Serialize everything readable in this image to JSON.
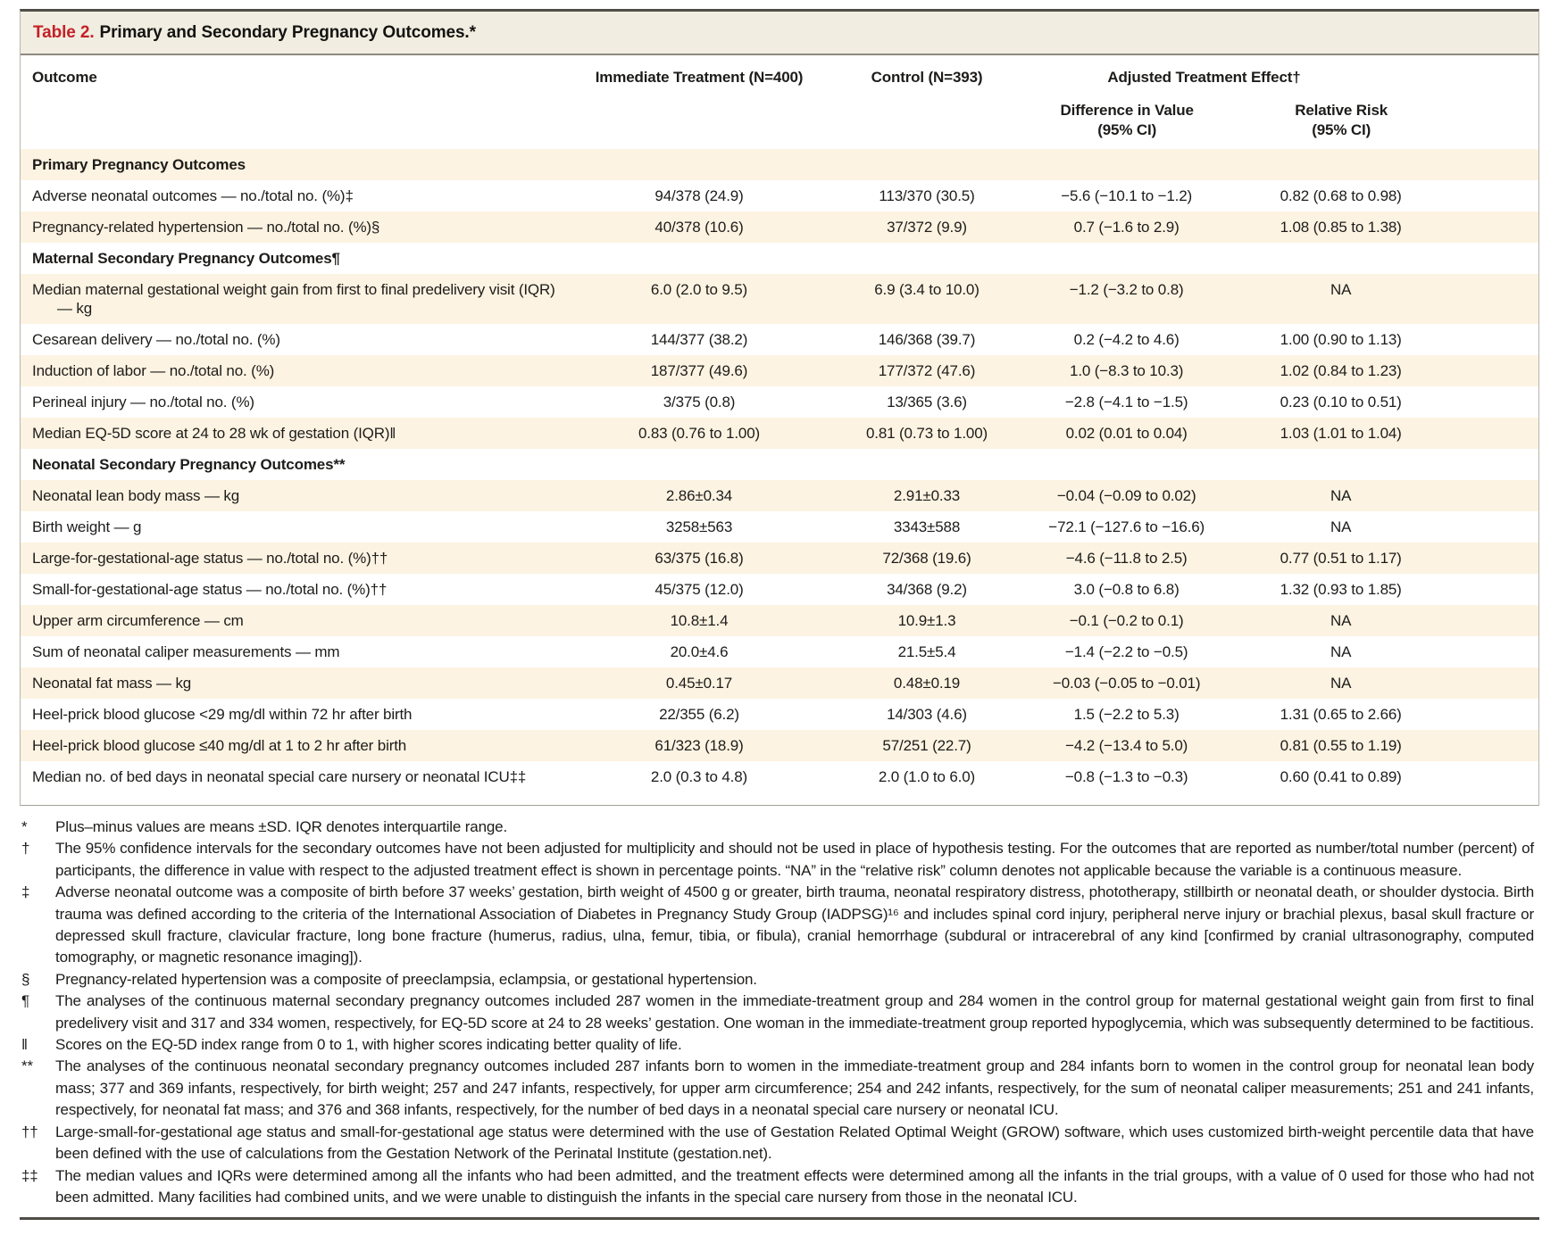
{
  "title": {
    "label": "Table 2.",
    "text": "Primary and Secondary Pregnancy Outcomes.*"
  },
  "columns": {
    "outcome": "Outcome",
    "immediate": "Immediate Treatment (N=400)",
    "control": "Control (N=393)",
    "adjusted_group": "Adjusted Treatment Effect†",
    "difference": "Difference in Value\n(95% CI)",
    "relative_risk": "Relative Risk\n(95% CI)"
  },
  "rows": [
    {
      "type": "section",
      "label": "Primary Pregnancy Outcomes"
    },
    {
      "type": "data",
      "label": "Adverse neonatal outcomes — no./total no. (%)‡",
      "values": [
        "94/378 (24.9)",
        "113/370 (30.5)",
        "−5.6 (−10.1 to −1.2)",
        "0.82 (0.68 to 0.98)"
      ]
    },
    {
      "type": "data",
      "label": "Pregnancy-related hypertension — no./total no. (%)§",
      "values": [
        "40/378 (10.6)",
        "37/372 (9.9)",
        "0.7 (−1.6 to 2.9)",
        "1.08 (0.85 to 1.38)"
      ]
    },
    {
      "type": "section",
      "label": "Maternal Secondary Pregnancy Outcomes¶"
    },
    {
      "type": "data",
      "label": "Median maternal gestational weight gain from first to final predelivery visit (IQR) — kg",
      "values": [
        "6.0 (2.0 to 9.5)",
        "6.9 (3.4 to 10.0)",
        "−1.2 (−3.2 to 0.8)",
        "NA"
      ]
    },
    {
      "type": "data",
      "label": "Cesarean delivery — no./total no. (%)",
      "values": [
        "144/377 (38.2)",
        "146/368 (39.7)",
        "0.2 (−4.2 to 4.6)",
        "1.00 (0.90 to 1.13)"
      ]
    },
    {
      "type": "data",
      "label": "Induction of labor — no./total no. (%)",
      "values": [
        "187/377 (49.6)",
        "177/372 (47.6)",
        "1.0 (−8.3 to 10.3)",
        "1.02 (0.84 to 1.23)"
      ]
    },
    {
      "type": "data",
      "label": "Perineal injury — no./total no. (%)",
      "values": [
        "3/375 (0.8)",
        "13/365 (3.6)",
        "−2.8 (−4.1 to −1.5)",
        "0.23 (0.10 to 0.51)"
      ]
    },
    {
      "type": "data",
      "label": "Median EQ-5D score at 24 to 28 wk of gestation (IQR)‖",
      "values": [
        "0.83 (0.76 to 1.00)",
        "0.81 (0.73 to 1.00)",
        "0.02 (0.01 to 0.04)",
        "1.03 (1.01 to 1.04)"
      ]
    },
    {
      "type": "section",
      "label": "Neonatal Secondary Pregnancy Outcomes**"
    },
    {
      "type": "data",
      "label": "Neonatal lean body mass — kg",
      "values": [
        "2.86±0.34",
        "2.91±0.33",
        "−0.04 (−0.09 to 0.02)",
        "NA"
      ]
    },
    {
      "type": "data",
      "label": "Birth weight — g",
      "values": [
        "3258±563",
        "3343±588",
        "−72.1 (−127.6 to −16.6)",
        "NA"
      ]
    },
    {
      "type": "data",
      "label": "Large-for-gestational-age status — no./total no. (%)††",
      "values": [
        "63/375 (16.8)",
        "72/368 (19.6)",
        "−4.6 (−11.8 to 2.5)",
        "0.77 (0.51 to 1.17)"
      ]
    },
    {
      "type": "data",
      "label": "Small-for-gestational-age status — no./total no. (%)††",
      "values": [
        "45/375 (12.0)",
        "34/368 (9.2)",
        "3.0 (−0.8 to 6.8)",
        "1.32 (0.93 to 1.85)"
      ]
    },
    {
      "type": "data",
      "label": "Upper arm circumference — cm",
      "values": [
        "10.8±1.4",
        "10.9±1.3",
        "−0.1 (−0.2 to 0.1)",
        "NA"
      ]
    },
    {
      "type": "data",
      "label": "Sum of neonatal caliper measurements — mm",
      "values": [
        "20.0±4.6",
        "21.5±5.4",
        "−1.4 (−2.2 to −0.5)",
        "NA"
      ]
    },
    {
      "type": "data",
      "label": "Neonatal fat mass — kg",
      "values": [
        "0.45±0.17",
        "0.48±0.19",
        "−0.03 (−0.05 to −0.01)",
        "NA"
      ]
    },
    {
      "type": "data",
      "label": "Heel-prick blood glucose <29 mg/dl within 72 hr after birth",
      "values": [
        "22/355 (6.2)",
        "14/303 (4.6)",
        "1.5 (−2.2 to 5.3)",
        "1.31 (0.65 to 2.66)"
      ]
    },
    {
      "type": "data",
      "label": "Heel-prick blood glucose ≤40 mg/dl at 1 to 2 hr after birth",
      "values": [
        "61/323 (18.9)",
        "57/251 (22.7)",
        "−4.2 (−13.4 to 5.0)",
        "0.81 (0.55 to 1.19)"
      ]
    },
    {
      "type": "data",
      "label": "Median no. of bed days in neonatal special care nursery or neonatal ICU‡‡",
      "values": [
        "2.0 (0.3 to 4.8)",
        "2.0 (1.0 to 6.0)",
        "−0.8 (−1.3 to −0.3)",
        "0.60 (0.41 to 0.89)"
      ]
    }
  ],
  "footnotes": [
    {
      "marker": "*",
      "text": "Plus–minus values are means ±SD. IQR denotes interquartile range."
    },
    {
      "marker": "†",
      "text": "The 95% confidence intervals for the secondary outcomes have not been adjusted for multiplicity and should not be used in place of hypothesis testing. For the outcomes that are reported as number/total number (percent) of participants, the difference in value with respect to the adjusted treatment effect is shown in percentage points. “NA” in the “relative risk” column denotes not applicable because the variable is a continuous measure."
    },
    {
      "marker": "‡",
      "text": "Adverse neonatal outcome was a composite of birth before 37 weeks’ gestation, birth weight of 4500 g or greater, birth trauma, neonatal respiratory distress, phototherapy, stillbirth or neonatal death, or shoulder dystocia. Birth trauma was defined according to the criteria of the International Association of Diabetes in Pregnancy Study Group (IADPSG)¹⁶ and includes spinal cord injury, peripheral nerve injury or brachial plexus, basal skull fracture or depressed skull fracture, clavicular fracture, long bone fracture (humerus, radius, ulna, femur, tibia, or fibula), cranial hemorrhage (subdural or intracerebral of any kind [confirmed by cranial ultrasonography, computed tomography, or magnetic resonance imaging])."
    },
    {
      "marker": "§",
      "text": "Pregnancy-related hypertension was a composite of preeclampsia, eclampsia, or gestational hypertension."
    },
    {
      "marker": "¶",
      "text": "The analyses of the continuous maternal secondary pregnancy outcomes included 287 women in the immediate-treatment group and 284 women in the control group for maternal gestational weight gain from first to final predelivery visit and 317 and 334 women, respectively, for EQ-5D score at 24 to 28 weeks’ gestation. One woman in the immediate-treatment group reported hypoglycemia, which was subsequently determined to be factitious."
    },
    {
      "marker": "‖",
      "text": "Scores on the EQ-5D index range from 0 to 1, with higher scores indicating better quality of life."
    },
    {
      "marker": "**",
      "text": "The analyses of the continuous neonatal secondary pregnancy outcomes included 287 infants born to women in the immediate-treatment group and 284 infants born to women in the control group for neonatal lean body mass; 377 and 369 infants, respectively, for birth weight; 257 and 247 infants, respectively, for upper arm circumference; 254 and 242 infants, respectively, for the sum of neonatal caliper measurements; 251 and 241 infants, respectively, for neonatal fat mass; and 376 and 368 infants, respectively, for the number of bed days in a neonatal special care nursery or neonatal ICU."
    },
    {
      "marker": "††",
      "text": "Large-small-for-gestational age status and small-for-gestational age status were determined with the use of Gestation Related Optimal Weight (GROW) software, which uses customized birth-weight percentile data that have been defined with the use of calculations from the Gestation Network of the Perinatal Institute (gestation.net)."
    },
    {
      "marker": "‡‡",
      "text": "The median values and IQRs were determined among all the infants who had been admitted, and the treatment effects were determined among all the infants in the trial groups, with a value of 0 used for those who had not been admitted. Many facilities had combined units, and we were unable to distinguish the infants in the special care nursery from those in the neonatal ICU."
    }
  ]
}
